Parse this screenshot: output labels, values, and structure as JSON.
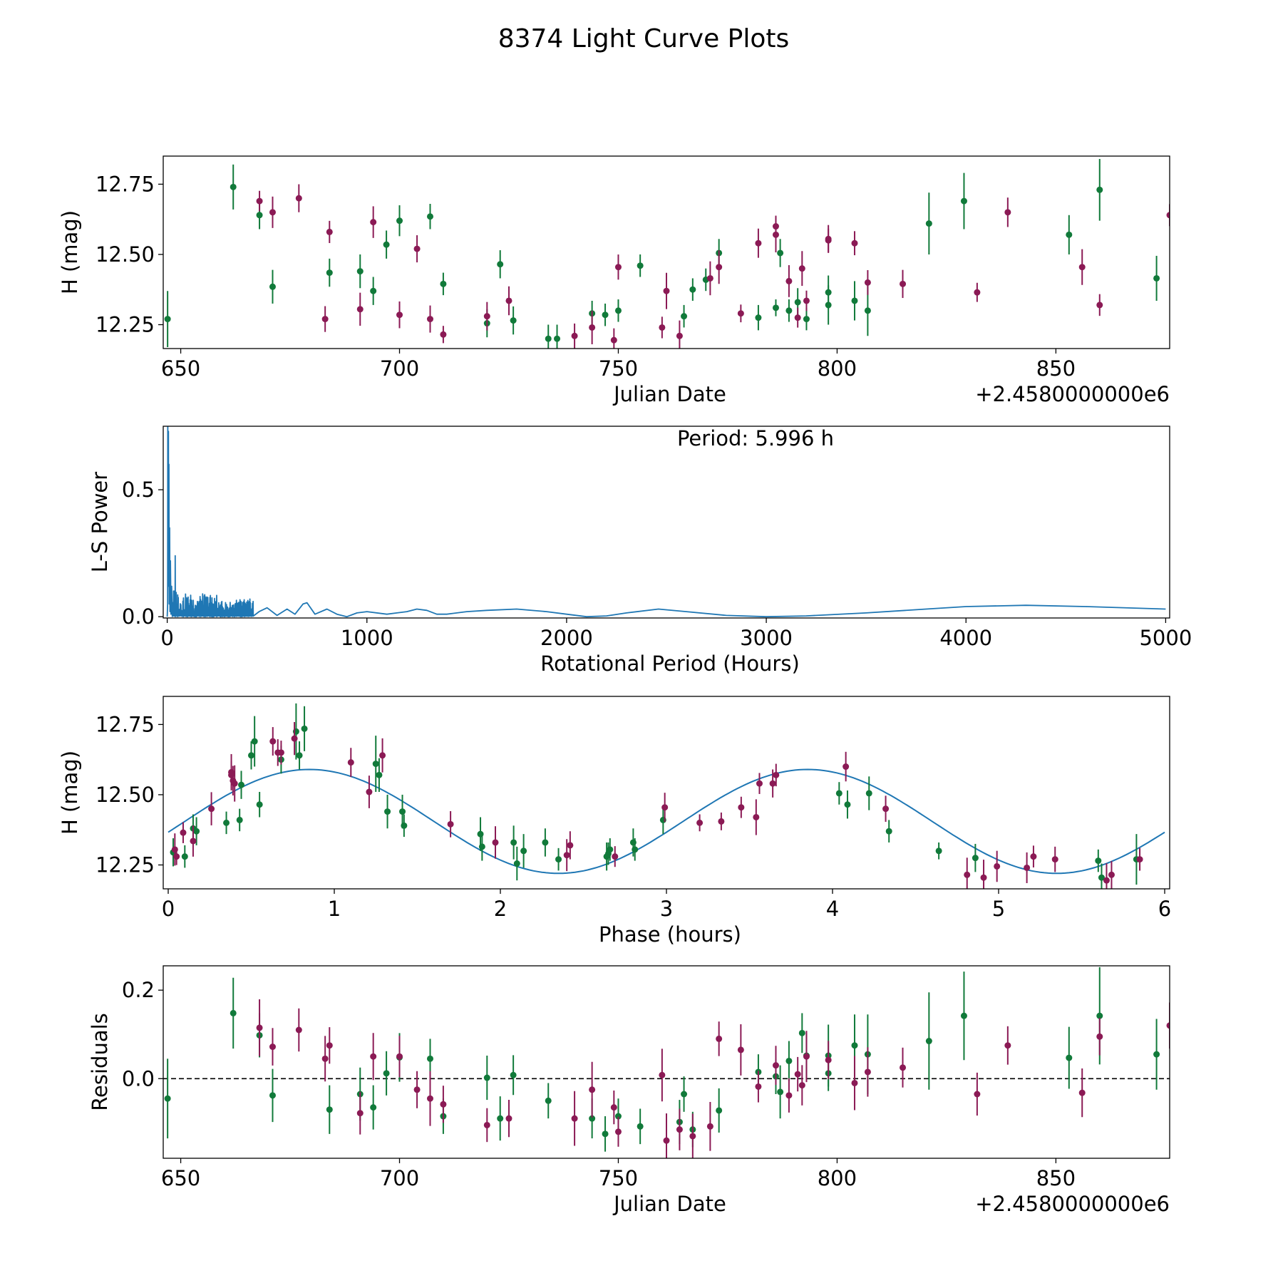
{
  "figure_title": "8374 Light Curve Plots",
  "colors": {
    "green": "#117a3a",
    "purple": "#8b1a55",
    "blue": "#1f77b4",
    "black": "#000000"
  },
  "chart_data": [
    {
      "type": "scatter",
      "name": "light-curve",
      "xlabel": "Julian Date",
      "ylabel": "H (mag)",
      "offset_label": "+2.4580000000e6",
      "xlim": [
        646,
        876
      ],
      "ylim": [
        12.165,
        12.85
      ],
      "xticks": [
        650,
        700,
        750,
        800,
        850
      ],
      "yticks": [
        12.25,
        12.5,
        12.75
      ],
      "ytick_labels": [
        "12.25",
        "12.50",
        "12.75"
      ],
      "series": [
        {
          "name": "filter-green",
          "color": "green",
          "x": [
            647,
            662,
            668,
            671,
            684,
            691,
            694,
            697,
            700,
            707,
            710,
            720,
            723,
            726,
            734,
            736,
            744,
            747,
            750,
            755,
            765,
            767,
            770,
            773,
            782,
            786,
            787,
            789,
            791,
            793,
            798,
            798,
            804,
            807,
            821,
            829,
            853,
            860,
            873
          ],
          "y": [
            12.27,
            12.74,
            12.64,
            12.385,
            12.435,
            12.44,
            12.37,
            12.535,
            12.62,
            12.635,
            12.395,
            12.255,
            12.465,
            12.265,
            12.2,
            12.2,
            12.29,
            12.285,
            12.3,
            12.46,
            12.28,
            12.375,
            12.41,
            12.505,
            12.275,
            12.31,
            12.505,
            12.3,
            12.33,
            12.27,
            12.32,
            12.365,
            12.335,
            12.3,
            12.61,
            12.69,
            12.57,
            12.73,
            12.415
          ],
          "err": [
            0.1,
            0.08,
            0.05,
            0.06,
            0.05,
            0.06,
            0.05,
            0.05,
            0.055,
            0.045,
            0.04,
            0.05,
            0.05,
            0.05,
            0.05,
            0.05,
            0.045,
            0.04,
            0.04,
            0.04,
            0.04,
            0.04,
            0.04,
            0.05,
            0.045,
            0.03,
            0.05,
            0.04,
            0.05,
            0.04,
            0.07,
            0.06,
            0.07,
            0.09,
            0.11,
            0.1,
            0.07,
            0.11,
            0.08
          ]
        },
        {
          "name": "filter-purple",
          "color": "purple",
          "x": [
            668,
            671,
            677,
            683,
            684,
            691,
            694,
            700,
            704,
            707,
            710,
            720,
            725,
            740,
            744,
            749,
            750,
            760,
            761,
            764,
            771,
            773,
            778,
            782,
            786,
            786,
            789,
            791,
            792,
            793,
            798,
            798,
            804,
            807,
            815,
            832,
            839,
            856,
            860,
            876
          ],
          "y": [
            12.69,
            12.65,
            12.7,
            12.27,
            12.58,
            12.305,
            12.615,
            12.285,
            12.52,
            12.27,
            12.215,
            12.28,
            12.335,
            12.21,
            12.24,
            12.195,
            12.455,
            12.24,
            12.37,
            12.21,
            12.415,
            12.455,
            12.29,
            12.54,
            12.57,
            12.6,
            12.405,
            12.275,
            12.45,
            12.335,
            12.55,
            12.555,
            12.54,
            12.4,
            12.395,
            12.365,
            12.65,
            12.455,
            12.32,
            12.64
          ]
        }
      ]
    },
    {
      "type": "line",
      "name": "periodogram",
      "xlabel": "Rotational Period (Hours)",
      "ylabel": "L-S Power",
      "annotation": "Period: 5.996 h",
      "xlim": [
        -20,
        5020
      ],
      "ylim": [
        -0.005,
        0.75
      ],
      "xticks": [
        0,
        1000,
        2000,
        3000,
        4000,
        5000
      ],
      "yticks": [
        0.0,
        0.5
      ],
      "ytick_labels": [
        "0.0",
        "0.5"
      ],
      "peak_period": 5.996,
      "peak_power": 0.75,
      "envelope": {
        "x": [
          430,
          460,
          500,
          550,
          600,
          640,
          680,
          700,
          740,
          800,
          850,
          900,
          950,
          1000,
          1100,
          1150,
          1200,
          1250,
          1300,
          1350,
          1400,
          1500,
          1600,
          1750,
          1900,
          2000,
          2100,
          2200,
          2300,
          2460,
          2600,
          2800,
          3000,
          3200,
          3500,
          3800,
          4000,
          4300,
          4600,
          5000
        ],
        "y": [
          0.06,
          0.02,
          0.035,
          0.005,
          0.03,
          0.01,
          0.05,
          0.055,
          0.01,
          0.03,
          0.01,
          0.0,
          0.015,
          0.02,
          0.01,
          0.015,
          0.02,
          0.03,
          0.025,
          0.01,
          0.01,
          0.02,
          0.025,
          0.03,
          0.02,
          0.01,
          0.0,
          0.003,
          0.015,
          0.03,
          0.02,
          0.005,
          0.0,
          0.003,
          0.015,
          0.03,
          0.04,
          0.045,
          0.04,
          0.03
        ]
      }
    },
    {
      "type": "scatter",
      "name": "phased-curve",
      "xlabel": "Phase (hours)",
      "ylabel": "H (mag)",
      "xlim": [
        -0.03,
        6.03
      ],
      "ylim": [
        12.165,
        12.85
      ],
      "xticks": [
        0,
        1,
        2,
        3,
        4,
        5,
        6
      ],
      "yticks": [
        12.25,
        12.5,
        12.75
      ],
      "ytick_labels": [
        "12.25",
        "12.50",
        "12.75"
      ],
      "model": {
        "type": "sine",
        "mean": 12.405,
        "amplitude": 0.185,
        "period_hours": 3.0,
        "peak_phase": 0.85
      },
      "series": [
        {
          "name": "filter-green",
          "color": "green",
          "x": [
            0.03,
            0.1,
            0.15,
            0.17,
            0.35,
            0.43,
            0.44,
            0.5,
            0.52,
            0.55,
            0.68,
            0.77,
            0.79,
            0.82,
            1.25,
            1.27,
            1.32,
            1.41,
            1.42,
            1.88,
            1.89,
            2.08,
            2.1,
            2.14,
            2.27,
            2.35,
            2.64,
            2.65,
            2.66,
            2.8,
            2.81,
            2.98,
            4.04,
            4.09,
            4.22,
            4.34,
            4.64,
            4.86,
            5.6,
            5.62,
            5.83
          ],
          "y": [
            12.295,
            12.28,
            12.38,
            12.37,
            12.4,
            12.41,
            12.535,
            12.64,
            12.69,
            12.465,
            12.625,
            12.725,
            12.64,
            12.735,
            12.61,
            12.57,
            12.44,
            12.44,
            12.39,
            12.36,
            12.315,
            12.33,
            12.255,
            12.3,
            12.33,
            12.27,
            12.28,
            12.29,
            12.305,
            12.33,
            12.305,
            12.41,
            12.505,
            12.465,
            12.505,
            12.37,
            12.3,
            12.275,
            12.265,
            12.205,
            12.27
          ],
          "err": [
            0.05,
            0.04,
            0.05,
            0.05,
            0.04,
            0.04,
            0.05,
            0.05,
            0.09,
            0.045,
            0.05,
            0.1,
            0.05,
            0.08,
            0.1,
            0.06,
            0.06,
            0.06,
            0.04,
            0.06,
            0.05,
            0.06,
            0.06,
            0.06,
            0.05,
            0.04,
            0.05,
            0.04,
            0.04,
            0.05,
            0.04,
            0.05,
            0.04,
            0.05,
            0.06,
            0.04,
            0.03,
            0.05,
            0.04,
            0.05,
            0.09
          ]
        },
        {
          "name": "filter-purple",
          "color": "purple",
          "x": [
            0.04,
            0.05,
            0.09,
            0.15,
            0.26,
            0.38,
            0.38,
            0.39,
            0.4,
            0.63,
            0.66,
            0.68,
            0.76,
            1.1,
            1.21,
            1.29,
            1.7,
            1.97,
            2.4,
            2.42,
            2.69,
            2.99,
            3.2,
            3.33,
            3.45,
            3.54,
            3.56,
            3.64,
            3.66,
            4.08,
            4.32,
            4.81,
            4.91,
            4.99,
            5.17,
            5.21,
            5.34,
            5.65,
            5.68,
            5.85
          ],
          "y": [
            12.305,
            12.28,
            12.365,
            12.335,
            12.45,
            12.58,
            12.57,
            12.55,
            12.54,
            12.69,
            12.65,
            12.65,
            12.7,
            12.615,
            12.51,
            12.64,
            12.395,
            12.33,
            12.285,
            12.32,
            12.28,
            12.455,
            12.4,
            12.405,
            12.455,
            12.42,
            12.54,
            12.54,
            12.57,
            12.6,
            12.45,
            12.215,
            12.205,
            12.245,
            12.24,
            12.28,
            12.27,
            12.195,
            12.215,
            12.27
          ]
        }
      ]
    },
    {
      "type": "scatter",
      "name": "residuals",
      "xlabel": "Julian Date",
      "ylabel": "Residuals",
      "offset_label": "+2.4580000000e6",
      "xlim": [
        646,
        876
      ],
      "ylim": [
        -0.18,
        0.255
      ],
      "xticks": [
        650,
        700,
        750,
        800,
        850
      ],
      "yticks": [
        0.0,
        0.2
      ],
      "ytick_labels": [
        "0.0",
        "0.2"
      ],
      "reference_line": 0.0,
      "series": [
        {
          "name": "filter-green",
          "color": "green",
          "x": [
            647,
            662,
            668,
            671,
            684,
            691,
            694,
            697,
            700,
            707,
            710,
            720,
            723,
            726,
            734,
            744,
            747,
            750,
            755,
            764,
            765,
            767,
            773,
            782,
            786,
            787,
            789,
            792,
            793,
            798,
            798,
            804,
            807,
            821,
            829,
            853,
            860,
            873
          ],
          "y": [
            -0.045,
            0.148,
            0.098,
            -0.038,
            -0.07,
            -0.035,
            -0.065,
            0.012,
            0.048,
            0.045,
            -0.085,
            0.002,
            -0.09,
            0.008,
            -0.05,
            -0.09,
            -0.125,
            -0.085,
            -0.108,
            -0.098,
            -0.035,
            -0.115,
            -0.072,
            0.015,
            0.005,
            -0.03,
            0.04,
            0.103,
            0.052,
            0.052,
            0.012,
            0.075,
            0.055,
            0.085,
            0.142,
            0.047,
            0.142,
            0.055
          ],
          "err": [
            0.09,
            0.08,
            0.05,
            0.06,
            0.055,
            0.06,
            0.05,
            0.05,
            0.055,
            0.045,
            0.04,
            0.05,
            0.05,
            0.045,
            0.04,
            0.045,
            0.04,
            0.04,
            0.04,
            0.05,
            0.04,
            0.04,
            0.05,
            0.04,
            0.04,
            0.06,
            0.045,
            0.045,
            0.05,
            0.07,
            0.04,
            0.07,
            0.09,
            0.11,
            0.1,
            0.07,
            0.11,
            0.08
          ]
        },
        {
          "name": "filter-purple",
          "color": "purple",
          "x": [
            668,
            671,
            677,
            683,
            684,
            691,
            694,
            700,
            704,
            707,
            710,
            720,
            725,
            740,
            744,
            749,
            750,
            760,
            761,
            764,
            767,
            771,
            773,
            778,
            782,
            786,
            789,
            791,
            792,
            793,
            798,
            804,
            807,
            815,
            832,
            839,
            856,
            860,
            876
          ],
          "y": [
            0.115,
            0.072,
            0.11,
            0.045,
            0.075,
            -0.078,
            0.05,
            0.05,
            -0.025,
            -0.045,
            -0.058,
            -0.105,
            -0.09,
            -0.09,
            -0.025,
            -0.065,
            -0.12,
            0.008,
            -0.14,
            -0.115,
            -0.13,
            -0.108,
            0.09,
            0.065,
            -0.018,
            0.03,
            -0.038,
            0.01,
            -0.015,
            0.05,
            0.042,
            -0.01,
            0.015,
            0.025,
            -0.035,
            0.075,
            -0.032,
            0.095,
            0.12
          ]
        }
      ]
    }
  ]
}
